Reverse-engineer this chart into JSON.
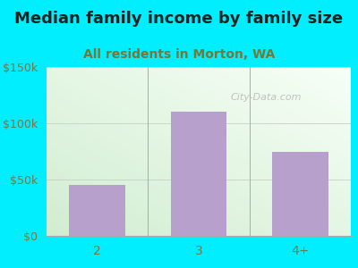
{
  "title": "Median family income by family size",
  "subtitle": "All residents in Morton, WA",
  "categories": [
    "2",
    "3",
    "4+"
  ],
  "values": [
    45000,
    110000,
    75000
  ],
  "bar_color": "#b8a0cc",
  "title_fontsize": 13,
  "subtitle_fontsize": 10,
  "title_color": "#222222",
  "subtitle_color": "#777733",
  "tick_label_color": "#777744",
  "background_color": "#00eeff",
  "plot_bg_color_topleft": "#d0ecd0",
  "plot_bg_color_white": "#f8fff8",
  "ylim": [
    0,
    150000
  ],
  "yticks": [
    0,
    50000,
    100000,
    150000
  ],
  "ytick_labels": [
    "$0",
    "$50k",
    "$100k",
    "$150k"
  ],
  "watermark": "City-Data.com"
}
